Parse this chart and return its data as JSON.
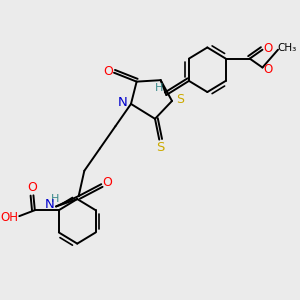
{
  "bg_color": "#ebebeb",
  "colors": {
    "C": "#000000",
    "N": "#0000cc",
    "O": "#ff0000",
    "S": "#ccaa00",
    "H": "#3a8a8a",
    "bond": "#000000"
  },
  "figsize": [
    3.0,
    3.0
  ],
  "dpi": 100
}
